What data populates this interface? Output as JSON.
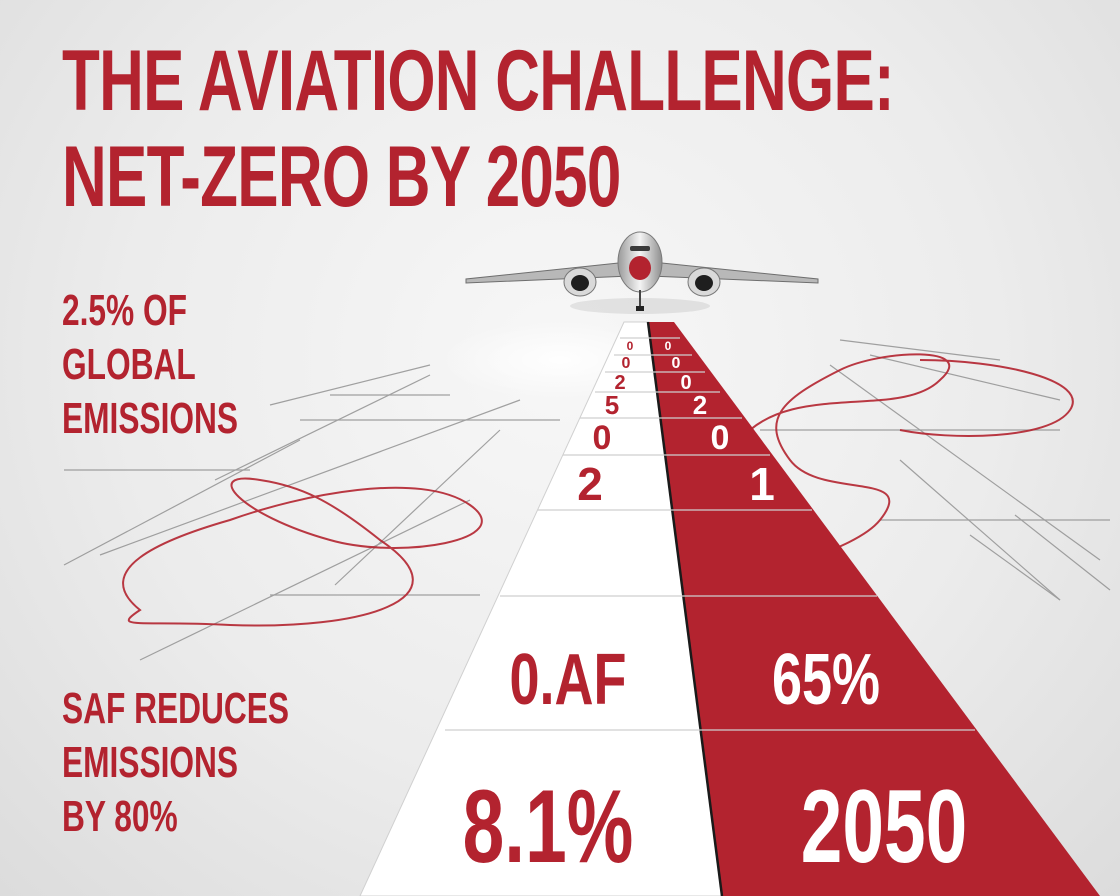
{
  "title": {
    "line1": "THE AVIATION CHALLENGE:",
    "line2": "NET-ZERO BY 2050"
  },
  "stats": {
    "top": [
      "2.5% OF",
      "GLOBAL",
      "EMISSIONS"
    ],
    "bottom": [
      "SAF REDUCES",
      "EMISSIONS",
      "BY 80%"
    ]
  },
  "runway": {
    "left_labels": [
      "0",
      "0",
      "2",
      "5",
      "0",
      "2",
      "0.AF",
      "8.1%"
    ],
    "right_labels": [
      "0",
      "0",
      "0",
      "2",
      "0",
      "1",
      "65%",
      "2050"
    ]
  },
  "colors": {
    "accent": "#b3232f",
    "white_lane": "#ffffff",
    "background": "#ececec"
  }
}
